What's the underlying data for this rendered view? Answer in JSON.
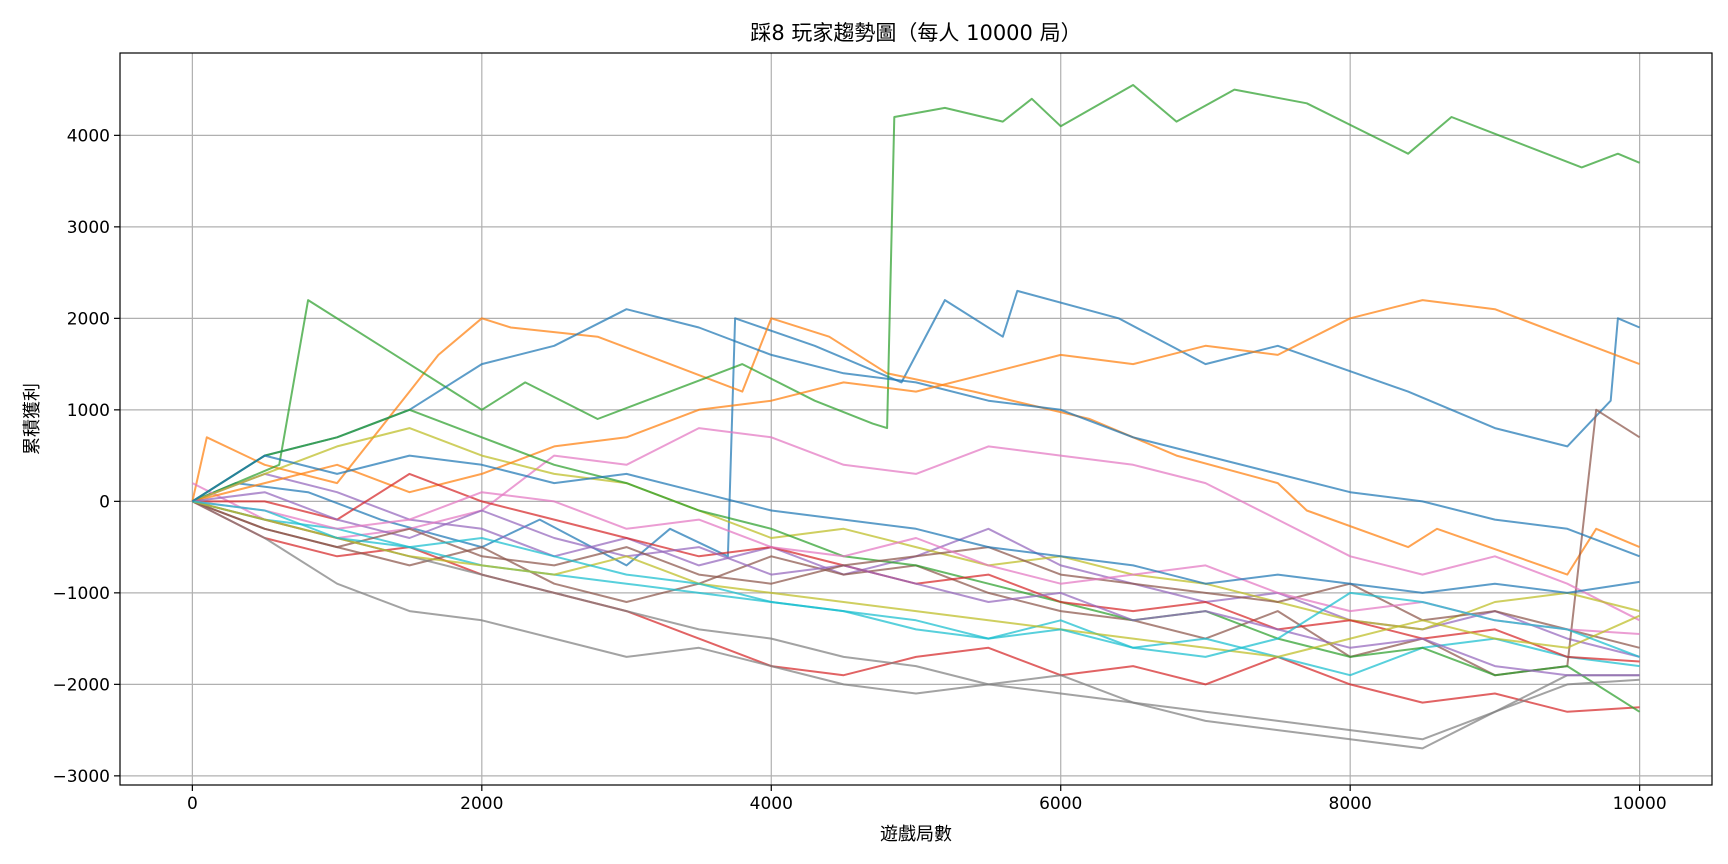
{
  "chart_data": {
    "type": "line",
    "title": "踩8 玩家趨勢圖（每人 10000 局）",
    "xlabel": "遊戲局數",
    "ylabel": "累積獲利",
    "xlim": [
      -500,
      10500
    ],
    "ylim": [
      -3100,
      4900
    ],
    "xticks": [
      0,
      2000,
      4000,
      6000,
      8000,
      10000
    ],
    "yticks": [
      -3000,
      -2000,
      -1000,
      0,
      1000,
      2000,
      3000,
      4000
    ],
    "grid": true,
    "colors": [
      "#1f77b4",
      "#ff7f0e",
      "#2ca02c",
      "#d62728",
      "#9467bd",
      "#8c564b",
      "#e377c2",
      "#7f7f7f",
      "#bcbd22",
      "#17becf"
    ],
    "series": [
      {
        "x": [
          0,
          300,
          800,
          1300,
          2000,
          2400,
          3000,
          3300,
          3700,
          3750,
          4300,
          4900,
          5200,
          5600,
          5700,
          6400,
          7000,
          7500,
          8400,
          9000,
          9500,
          9800,
          9850,
          10000
        ],
        "y": [
          0,
          200,
          100,
          -200,
          -500,
          -200,
          -700,
          -300,
          -600,
          2000,
          1700,
          1300,
          2200,
          1800,
          2300,
          2000,
          1500,
          1700,
          1200,
          800,
          600,
          1100,
          2000,
          1900
        ]
      },
      {
        "x": [
          0,
          100,
          500,
          1000,
          1500,
          1700,
          2000,
          2200,
          2800,
          3300,
          3800,
          4000,
          4400,
          4800,
          5400,
          6200,
          6800,
          7500,
          7700,
          8400,
          8600,
          9500,
          9700,
          10000
        ],
        "y": [
          0,
          700,
          400,
          200,
          1200,
          1600,
          2000,
          1900,
          1800,
          1500,
          1200,
          2000,
          1800,
          1400,
          1200,
          900,
          500,
          200,
          -100,
          -500,
          -300,
          -800,
          -300,
          -500
        ]
      },
      {
        "x": [
          0,
          600,
          800,
          1300,
          1800,
          2000,
          2300,
          2800,
          3300,
          3800,
          4300,
          4700,
          4800,
          4850,
          5200,
          5600,
          5800,
          6000,
          6500,
          6800,
          7200,
          7700,
          8400,
          8700,
          9600,
          9850,
          10000
        ],
        "y": [
          0,
          400,
          2200,
          1700,
          1200,
          1000,
          1300,
          900,
          1200,
          1500,
          1100,
          850,
          800,
          4200,
          4300,
          4150,
          4400,
          4100,
          4550,
          4150,
          4500,
          4350,
          3800,
          4200,
          3650,
          3800,
          3700
        ]
      },
      {
        "x": [
          0,
          500,
          1000,
          1500,
          2000,
          2500,
          3000,
          3500,
          4000,
          4500,
          5000,
          5500,
          6000,
          6500,
          7000,
          7500,
          8000,
          8500,
          9000,
          9500,
          10000
        ],
        "y": [
          0,
          -400,
          -600,
          -500,
          -800,
          -1000,
          -1200,
          -1500,
          -1800,
          -1900,
          -1700,
          -1600,
          -1900,
          -1800,
          -2000,
          -1700,
          -2000,
          -2200,
          -2100,
          -2300,
          -2250
        ]
      },
      {
        "x": [
          0,
          500,
          1000,
          1500,
          2000,
          2500,
          3000,
          3500,
          4000,
          4500,
          5000,
          5500,
          6000,
          6500,
          7000,
          7500,
          8000,
          8500,
          9000,
          9500,
          10000
        ],
        "y": [
          0,
          300,
          100,
          -200,
          -300,
          -600,
          -400,
          -700,
          -500,
          -800,
          -600,
          -300,
          -700,
          -900,
          -1100,
          -1000,
          -1300,
          -1400,
          -1200,
          -1500,
          -1700
        ]
      },
      {
        "x": [
          0,
          500,
          1000,
          1500,
          2000,
          2500,
          3000,
          3500,
          4000,
          4500,
          5000,
          5500,
          6000,
          6500,
          7000,
          7500,
          8000,
          8500,
          9000,
          9500,
          9700,
          10000
        ],
        "y": [
          0,
          -300,
          -500,
          -700,
          -500,
          -900,
          -1100,
          -900,
          -600,
          -800,
          -700,
          -1000,
          -1200,
          -1300,
          -1500,
          -1200,
          -1700,
          -1500,
          -1900,
          -1800,
          1000,
          700
        ]
      },
      {
        "x": [
          0,
          500,
          1000,
          1500,
          2000,
          2500,
          3000,
          3500,
          4000,
          4500,
          5000,
          5500,
          6000,
          6500,
          7000,
          7500,
          8000,
          8500,
          9000,
          9500,
          10000
        ],
        "y": [
          200,
          -200,
          -400,
          -300,
          -100,
          500,
          400,
          800,
          700,
          400,
          300,
          600,
          500,
          400,
          200,
          -200,
          -600,
          -800,
          -600,
          -900,
          -1300
        ]
      },
      {
        "x": [
          0,
          500,
          1000,
          1500,
          2000,
          2500,
          3000,
          3500,
          4000,
          4500,
          5000,
          5500,
          6000,
          6500,
          7000,
          7500,
          8000,
          8500,
          9000,
          9500,
          10000
        ],
        "y": [
          0,
          -400,
          -900,
          -1200,
          -1300,
          -1500,
          -1700,
          -1600,
          -1800,
          -2000,
          -2100,
          -2000,
          -1900,
          -2200,
          -2400,
          -2500,
          -2600,
          -2700,
          -2300,
          -1900,
          -1900
        ]
      },
      {
        "x": [
          0,
          500,
          1000,
          1500,
          2000,
          2500,
          3000,
          3500,
          4000,
          4500,
          5000,
          5500,
          6000,
          6500,
          7000,
          7500,
          8000,
          8500,
          9000,
          9500,
          10000
        ],
        "y": [
          0,
          300,
          600,
          800,
          500,
          300,
          200,
          -100,
          -400,
          -300,
          -500,
          -700,
          -600,
          -800,
          -900,
          -1100,
          -1300,
          -1400,
          -1100,
          -1000,
          -1200
        ]
      },
      {
        "x": [
          0,
          500,
          1000,
          1500,
          2000,
          2500,
          3000,
          3500,
          4000,
          4500,
          5000,
          5500,
          6000,
          6500,
          7000,
          7500,
          8000,
          8500,
          9000,
          9500,
          10000
        ],
        "y": [
          0,
          -200,
          -300,
          -500,
          -700,
          -800,
          -900,
          -1000,
          -1100,
          -1200,
          -1400,
          -1500,
          -1300,
          -1600,
          -1500,
          -1700,
          -1900,
          -1600,
          -1500,
          -1700,
          -1800
        ]
      },
      {
        "x": [
          0,
          500,
          1000,
          1500,
          2000,
          2500,
          3000,
          3500,
          4000,
          4500,
          5000,
          5500,
          6000,
          6500,
          7000,
          7500,
          8000,
          8500,
          9000,
          9500,
          10000
        ],
        "y": [
          0,
          500,
          700,
          1000,
          1500,
          1700,
          2100,
          1900,
          1600,
          1400,
          1300,
          1100,
          1000,
          700,
          500,
          300,
          100,
          0,
          -200,
          -300,
          -600
        ]
      },
      {
        "x": [
          0,
          500,
          1000,
          1500,
          2000,
          2500,
          3000,
          3500,
          4000,
          4500,
          5000,
          5500,
          6000,
          6500,
          7000,
          7500,
          8000,
          8500,
          9000,
          9500,
          10000
        ],
        "y": [
          0,
          200,
          400,
          100,
          300,
          600,
          700,
          1000,
          1100,
          1300,
          1200,
          1400,
          1600,
          1500,
          1700,
          1600,
          2000,
          2200,
          2100,
          1800,
          1500
        ]
      },
      {
        "x": [
          0,
          500,
          1000,
          1500,
          2000,
          2500,
          3000,
          3500,
          4000,
          4500,
          5000,
          5500,
          6000,
          6500,
          7000,
          7500,
          8000,
          8500,
          9000,
          9500,
          10000
        ],
        "y": [
          0,
          500,
          700,
          1000,
          700,
          400,
          200,
          -100,
          -300,
          -600,
          -700,
          -900,
          -1100,
          -1300,
          -1200,
          -1500,
          -1700,
          -1600,
          -1900,
          -1800,
          -2300
        ]
      },
      {
        "x": [
          0,
          500,
          1000,
          1500,
          2000,
          2500,
          3000,
          3500,
          4000,
          4500,
          5000,
          5500,
          6000,
          6500,
          7000,
          7500,
          8000,
          8500,
          9000,
          9500,
          10000
        ],
        "y": [
          0,
          0,
          -200,
          300,
          0,
          -200,
          -400,
          -600,
          -500,
          -700,
          -900,
          -800,
          -1100,
          -1200,
          -1100,
          -1400,
          -1300,
          -1500,
          -1400,
          -1700,
          -1750
        ]
      },
      {
        "x": [
          0,
          500,
          1000,
          1500,
          2000,
          2500,
          3000,
          3500,
          4000,
          4500,
          5000,
          5500,
          6000,
          6500,
          7000,
          7500,
          8000,
          8500,
          9000,
          9500,
          10000
        ],
        "y": [
          0,
          100,
          -200,
          -400,
          -100,
          -400,
          -600,
          -500,
          -800,
          -700,
          -900,
          -1100,
          -1000,
          -1300,
          -1200,
          -1400,
          -1600,
          -1500,
          -1800,
          -1900,
          -1900
        ]
      },
      {
        "x": [
          0,
          500,
          1000,
          1500,
          2000,
          2500,
          3000,
          3500,
          4000,
          4500,
          5000,
          5500,
          6000,
          6500,
          7000,
          7500,
          8000,
          8500,
          9000,
          9500,
          10000
        ],
        "y": [
          0,
          -300,
          -500,
          -300,
          -600,
          -700,
          -500,
          -800,
          -900,
          -700,
          -600,
          -500,
          -800,
          -900,
          -1000,
          -1100,
          -900,
          -1300,
          -1200,
          -1400,
          -1600
        ]
      },
      {
        "x": [
          0,
          500,
          1000,
          1500,
          2000,
          2500,
          3000,
          3500,
          4000,
          4500,
          5000,
          5500,
          6000,
          6500,
          7000,
          7500,
          8000,
          8500,
          9000,
          9500,
          10000
        ],
        "y": [
          0,
          -100,
          -300,
          -200,
          100,
          0,
          -300,
          -200,
          -500,
          -600,
          -400,
          -700,
          -900,
          -800,
          -700,
          -1000,
          -1200,
          -1100,
          -1300,
          -1400,
          -1450
        ]
      },
      {
        "x": [
          0,
          500,
          1000,
          1500,
          2000,
          2500,
          3000,
          3500,
          4000,
          4500,
          5000,
          5500,
          6000,
          6500,
          7000,
          7500,
          8000,
          8500,
          9000,
          9500,
          10000
        ],
        "y": [
          0,
          -200,
          -400,
          -600,
          -800,
          -1000,
          -1200,
          -1400,
          -1500,
          -1700,
          -1800,
          -2000,
          -2100,
          -2200,
          -2300,
          -2400,
          -2500,
          -2600,
          -2300,
          -2000,
          -1950
        ]
      },
      {
        "x": [
          0,
          500,
          1000,
          1500,
          2000,
          2500,
          3000,
          3500,
          4000,
          4500,
          5000,
          5500,
          6000,
          6500,
          7000,
          7500,
          8000,
          8500,
          9000,
          9500,
          10000
        ],
        "y": [
          0,
          -200,
          -400,
          -600,
          -700,
          -800,
          -600,
          -900,
          -1000,
          -1100,
          -1200,
          -1300,
          -1400,
          -1500,
          -1600,
          -1700,
          -1500,
          -1300,
          -1500,
          -1600,
          -1250
        ]
      },
      {
        "x": [
          0,
          500,
          1000,
          1500,
          2000,
          2500,
          3000,
          3500,
          4000,
          4500,
          5000,
          5500,
          6000,
          6500,
          7000,
          7500,
          8000,
          8500,
          9000,
          9500,
          10000
        ],
        "y": [
          0,
          -100,
          -400,
          -500,
          -400,
          -600,
          -800,
          -900,
          -1100,
          -1200,
          -1300,
          -1500,
          -1400,
          -1600,
          -1700,
          -1500,
          -1000,
          -1100,
          -1300,
          -1400,
          -1700
        ]
      },
      {
        "x": [
          0,
          500,
          1000,
          1500,
          2000,
          2500,
          3000,
          3500,
          4000,
          4500,
          5000,
          5500,
          6000,
          6500,
          7000,
          7500,
          8000,
          8500,
          9000,
          9500,
          10000
        ],
        "y": [
          0,
          500,
          300,
          500,
          400,
          200,
          300,
          100,
          -100,
          -200,
          -300,
          -500,
          -600,
          -700,
          -900,
          -800,
          -900,
          -1000,
          -900,
          -1000,
          -880
        ]
      }
    ]
  }
}
